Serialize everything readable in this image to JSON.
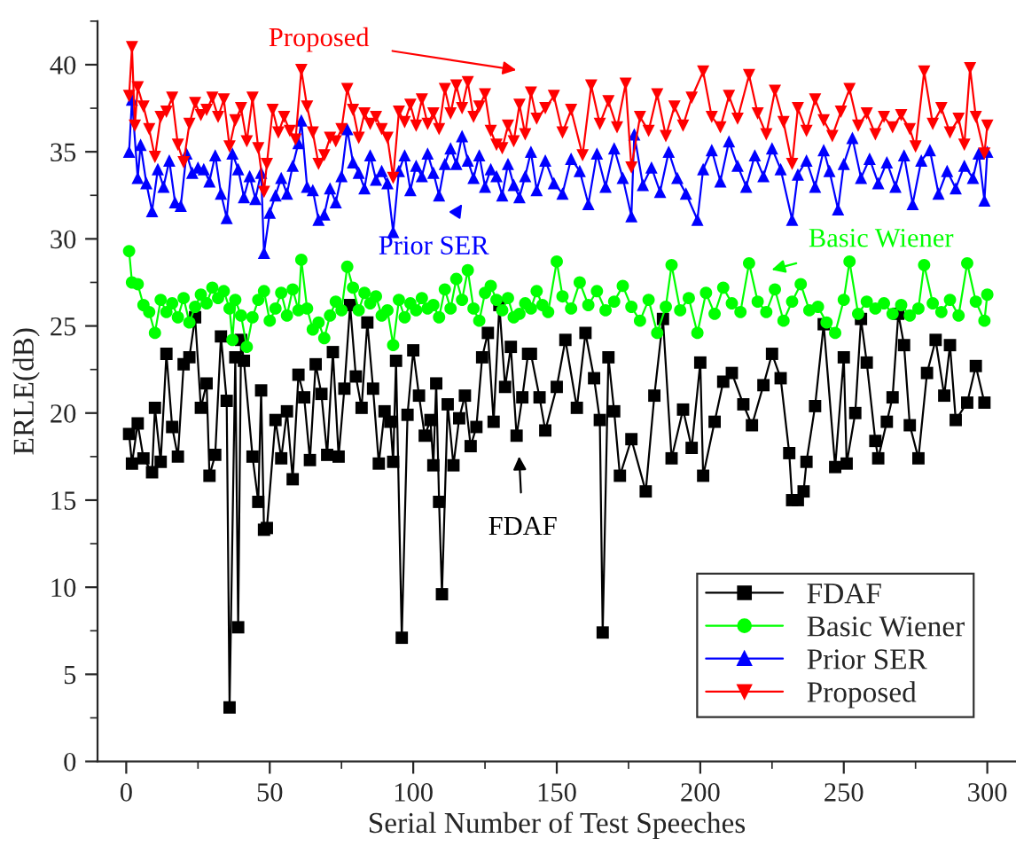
{
  "chart_data": {
    "type": "line",
    "xlabel": "Serial Number of Test Speeches",
    "ylabel": "ERLE(dB)",
    "xlim": [
      -10,
      310
    ],
    "xticks": [
      0,
      50,
      100,
      150,
      200,
      250,
      300
    ],
    "ylim": [
      0,
      42.5
    ],
    "yticks": [
      0,
      5,
      10,
      15,
      20,
      25,
      30,
      35,
      40
    ],
    "grid": false,
    "legend": "bottom right",
    "line_style": "solid",
    "series": [
      {
        "name": "FDAF",
        "color": "#000000",
        "marker": "square",
        "x": [
          1,
          2,
          4,
          6,
          9,
          10,
          12,
          14,
          16,
          18,
          20,
          22,
          24,
          26,
          28,
          29,
          31,
          33,
          35,
          36,
          38,
          39,
          40,
          41,
          44,
          46,
          47,
          48,
          49,
          52,
          54,
          56,
          58,
          60,
          62,
          64,
          66,
          68,
          70,
          72,
          74,
          76,
          78,
          80,
          82,
          84,
          86,
          88,
          90,
          92,
          93,
          94,
          96,
          98,
          100,
          102,
          104,
          106,
          107,
          108,
          109,
          110,
          112,
          114,
          116,
          118,
          120,
          122,
          124,
          126,
          128,
          130,
          132,
          134,
          136,
          138,
          140,
          141,
          144,
          146,
          150,
          153,
          157,
          160,
          163,
          165,
          166,
          168,
          170,
          172,
          176,
          181,
          184,
          187,
          190,
          194,
          197,
          200,
          201,
          205,
          208,
          211,
          215,
          218,
          222,
          225,
          228,
          231,
          232,
          234,
          236,
          237,
          240,
          243,
          247,
          250,
          251,
          254,
          256,
          258,
          261,
          262,
          265,
          267,
          269,
          271,
          273,
          276,
          279,
          282,
          285,
          287,
          289,
          293,
          296,
          299
        ],
        "values": [
          18.8,
          17.1,
          19.4,
          17.4,
          16.6,
          20.3,
          17.2,
          23.4,
          19.2,
          17.5,
          22.8,
          23.2,
          25.5,
          20.3,
          21.7,
          16.4,
          17.6,
          24.4,
          20.7,
          3.1,
          23.2,
          7.7,
          24.2,
          23.0,
          17.5,
          14.9,
          21.3,
          13.3,
          13.4,
          19.6,
          17.4,
          20.1,
          16.2,
          22.2,
          20.9,
          17.3,
          22.8,
          21.1,
          17.6,
          23.5,
          17.5,
          21.4,
          26.2,
          22.1,
          20.3,
          25.2,
          21.4,
          17.1,
          20.1,
          19.5,
          17.2,
          23.0,
          7.1,
          19.9,
          23.6,
          21.0,
          18.7,
          19.6,
          17.0,
          21.7,
          14.9,
          9.6,
          20.5,
          17.0,
          19.7,
          21.0,
          18.1,
          19.2,
          23.2,
          24.6,
          19.5,
          26.2,
          21.5,
          23.8,
          18.7,
          20.9,
          23.4,
          23.4,
          20.9,
          19.0,
          21.5,
          24.2,
          20.3,
          24.6,
          22.0,
          19.6,
          7.4,
          23.2,
          20.1,
          16.4,
          18.5,
          15.5,
          21.0,
          25.4,
          17.4,
          20.2,
          18.0,
          22.9,
          16.4,
          19.5,
          21.8,
          22.3,
          20.5,
          19.3,
          21.6,
          23.4,
          22.0,
          17.7,
          15.0,
          15.0,
          15.5,
          17.2,
          20.4,
          25.1,
          16.9,
          23.2,
          17.1,
          20.0,
          25.4,
          22.9,
          18.4,
          17.4,
          19.5,
          20.9,
          25.7,
          23.9,
          19.3,
          17.4,
          22.3,
          24.2,
          21.0,
          23.9,
          19.6,
          20.6,
          22.7,
          20.6
        ]
      },
      {
        "name": "Basic Wiener",
        "color": "#00ff00",
        "marker": "circle",
        "x": [
          1,
          2,
          4,
          6,
          8,
          10,
          12,
          14,
          16,
          18,
          20,
          22,
          24,
          26,
          28,
          30,
          32,
          34,
          36,
          37,
          38,
          40,
          42,
          44,
          46,
          48,
          50,
          52,
          54,
          56,
          58,
          60,
          61,
          63,
          65,
          67,
          69,
          71,
          73,
          75,
          77,
          79,
          81,
          83,
          85,
          87,
          89,
          91,
          93,
          95,
          97,
          99,
          101,
          103,
          105,
          107,
          109,
          111,
          113,
          115,
          117,
          119,
          121,
          123,
          125,
          127,
          129,
          131,
          133,
          135,
          137,
          139,
          141,
          143,
          145,
          147,
          150,
          152,
          155,
          158,
          161,
          164,
          167,
          170,
          173,
          176,
          179,
          182,
          185,
          188,
          190,
          193,
          196,
          199,
          202,
          205,
          208,
          211,
          214,
          217,
          220,
          223,
          226,
          229,
          232,
          235,
          238,
          241,
          244,
          247,
          250,
          252,
          255,
          258,
          261,
          264,
          267,
          270,
          273,
          276,
          278,
          281,
          284,
          287,
          290,
          293,
          296,
          299,
          300
        ],
        "values": [
          29.3,
          27.5,
          27.4,
          26.2,
          25.8,
          24.6,
          26.5,
          25.8,
          26.3,
          25.5,
          26.6,
          25.2,
          26.1,
          26.8,
          26.3,
          27.2,
          26.6,
          27.0,
          26.0,
          24.2,
          26.5,
          25.6,
          23.8,
          25.5,
          26.5,
          27.0,
          25.3,
          26.0,
          26.9,
          25.6,
          27.1,
          25.9,
          28.8,
          26.0,
          24.8,
          25.2,
          24.3,
          25.6,
          26.4,
          25.9,
          28.4,
          27.2,
          25.9,
          26.9,
          26.3,
          26.7,
          25.6,
          25.9,
          23.9,
          26.5,
          25.5,
          26.3,
          25.9,
          26.6,
          26.0,
          26.2,
          25.5,
          27.1,
          26.0,
          27.7,
          26.5,
          28.2,
          26.0,
          25.3,
          26.9,
          27.3,
          26.5,
          25.9,
          26.6,
          25.5,
          25.7,
          26.3,
          26.0,
          27.0,
          26.2,
          25.8,
          28.7,
          26.7,
          26.0,
          27.5,
          26.2,
          27.0,
          25.9,
          26.4,
          27.3,
          26.1,
          25.3,
          26.5,
          24.6,
          26.1,
          28.5,
          25.9,
          26.6,
          24.6,
          26.9,
          25.7,
          27.2,
          26.3,
          25.8,
          28.6,
          26.4,
          25.8,
          27.1,
          25.3,
          26.4,
          27.4,
          25.9,
          26.1,
          25.2,
          24.6,
          26.5,
          28.7,
          25.7,
          26.4,
          26.0,
          26.3,
          25.7,
          26.2,
          25.6,
          26.0,
          28.5,
          26.3,
          25.8,
          26.5,
          25.6,
          28.6,
          26.4,
          25.3,
          26.8
        ]
      },
      {
        "name": "Prior SER",
        "color": "#0000ff",
        "marker": "triangle",
        "x": [
          1,
          2,
          4,
          5,
          7,
          9,
          11,
          13,
          15,
          17,
          19,
          21,
          23,
          25,
          27,
          29,
          31,
          33,
          35,
          37,
          39,
          41,
          43,
          45,
          47,
          48,
          50,
          52,
          54,
          56,
          58,
          60,
          61,
          63,
          65,
          67,
          69,
          71,
          73,
          75,
          77,
          79,
          81,
          83,
          85,
          87,
          89,
          91,
          93,
          95,
          97,
          99,
          101,
          103,
          105,
          107,
          109,
          111,
          113,
          115,
          117,
          119,
          121,
          123,
          125,
          127,
          129,
          131,
          133,
          135,
          137,
          139,
          141,
          143,
          146,
          149,
          152,
          155,
          158,
          161,
          164,
          167,
          170,
          173,
          176,
          177,
          180,
          183,
          186,
          189,
          192,
          195,
          199,
          201,
          204,
          207,
          210,
          213,
          216,
          219,
          222,
          225,
          228,
          232,
          234,
          237,
          240,
          243,
          245,
          248,
          250,
          253,
          256,
          259,
          262,
          265,
          268,
          271,
          274,
          277,
          280,
          283,
          286,
          289,
          292,
          295,
          297,
          299,
          300
        ],
        "values": [
          35.0,
          38.0,
          33.5,
          35.4,
          33.2,
          31.6,
          34.0,
          33.0,
          34.5,
          32.1,
          31.9,
          34.9,
          33.8,
          34.1,
          34.0,
          33.3,
          34.8,
          32.6,
          31.2,
          34.9,
          34.0,
          32.4,
          33.6,
          32.3,
          33.8,
          29.2,
          31.5,
          32.5,
          33.5,
          32.6,
          34.2,
          35.5,
          36.8,
          33.0,
          32.8,
          31.1,
          31.4,
          32.9,
          32.1,
          33.6,
          36.3,
          34.4,
          33.8,
          32.9,
          34.8,
          33.4,
          33.9,
          33.2,
          30.4,
          33.9,
          34.8,
          32.8,
          34.2,
          33.6,
          34.9,
          33.8,
          32.5,
          34.3,
          35.2,
          34.3,
          35.9,
          34.5,
          33.5,
          34.8,
          33.0,
          34.0,
          33.6,
          32.5,
          34.3,
          33.1,
          32.4,
          33.6,
          35.0,
          32.8,
          34.5,
          33.2,
          32.6,
          34.6,
          33.9,
          32.0,
          34.9,
          33.0,
          35.2,
          33.5,
          31.3,
          36.0,
          33.1,
          34.1,
          32.7,
          35.0,
          33.5,
          32.6,
          31.1,
          34.0,
          35.1,
          33.3,
          35.6,
          34.2,
          33.0,
          34.8,
          33.6,
          35.2,
          34.0,
          31.1,
          33.7,
          34.5,
          33.0,
          35.1,
          33.9,
          31.7,
          34.3,
          35.8,
          33.5,
          34.6,
          33.2,
          34.4,
          33.0,
          34.8,
          32.0,
          34.5,
          35.1,
          32.6,
          33.9,
          32.9,
          34.2,
          33.5,
          34.9,
          32.2,
          35.0
        ]
      },
      {
        "name": "Proposed",
        "color": "#ff0000",
        "marker": "triangle_down",
        "x": [
          1,
          2,
          3,
          4,
          6,
          8,
          10,
          12,
          14,
          16,
          18,
          20,
          22,
          24,
          26,
          28,
          30,
          32,
          34,
          36,
          38,
          40,
          42,
          44,
          46,
          48,
          49,
          51,
          53,
          55,
          57,
          59,
          61,
          63,
          65,
          67,
          69,
          71,
          73,
          75,
          77,
          79,
          81,
          83,
          85,
          87,
          89,
          91,
          93,
          95,
          97,
          99,
          101,
          103,
          105,
          107,
          109,
          111,
          113,
          115,
          117,
          119,
          121,
          123,
          125,
          127,
          129,
          131,
          133,
          135,
          137,
          139,
          141,
          143,
          146,
          149,
          152,
          155,
          159,
          162,
          165,
          168,
          171,
          174,
          176,
          179,
          182,
          185,
          188,
          191,
          194,
          197,
          201,
          204,
          207,
          210,
          213,
          217,
          220,
          223,
          226,
          229,
          232,
          234,
          237,
          240,
          243,
          246,
          249,
          252,
          255,
          258,
          261,
          264,
          267,
          270,
          273,
          275,
          278,
          281,
          284,
          287,
          290,
          292,
          294,
          296,
          299,
          300
        ],
        "values": [
          38.2,
          41.0,
          36.5,
          38.7,
          37.6,
          36.3,
          34.7,
          37.0,
          37.3,
          38.1,
          35.4,
          34.4,
          36.6,
          37.8,
          37.1,
          37.4,
          38.1,
          37.0,
          38.0,
          35.3,
          36.8,
          37.5,
          35.6,
          38.1,
          35.2,
          32.7,
          34.3,
          37.4,
          36.1,
          37.0,
          36.2,
          35.7,
          39.7,
          37.6,
          36.1,
          34.3,
          34.8,
          35.8,
          35.6,
          36.3,
          38.6,
          37.4,
          35.8,
          37.2,
          36.6,
          37.0,
          36.3,
          35.8,
          33.5,
          37.3,
          36.7,
          37.7,
          36.5,
          38.0,
          36.6,
          37.2,
          36.3,
          38.6,
          37.2,
          38.8,
          37.5,
          39.0,
          37.0,
          37.6,
          38.3,
          36.2,
          35.4,
          35.2,
          36.5,
          35.6,
          37.7,
          36.0,
          38.4,
          36.9,
          37.5,
          38.2,
          36.1,
          37.4,
          34.8,
          38.8,
          36.6,
          37.9,
          36.4,
          38.9,
          34.1,
          37.0,
          36.2,
          38.3,
          35.9,
          37.6,
          36.5,
          38.1,
          39.6,
          37.0,
          36.4,
          38.2,
          36.9,
          39.4,
          37.2,
          36.0,
          38.5,
          36.7,
          34.3,
          37.5,
          36.2,
          38.0,
          36.8,
          35.9,
          37.3,
          38.6,
          36.5,
          37.2,
          36.0,
          37.0,
          36.4,
          37.1,
          36.3,
          35.3,
          39.6,
          36.6,
          37.5,
          36.1,
          36.9,
          35.4,
          39.8,
          37.0,
          34.9,
          36.5
        ]
      }
    ],
    "annotations": [
      "FDAF",
      "Basic Wiener",
      "Prior SER",
      "Proposed"
    ]
  }
}
